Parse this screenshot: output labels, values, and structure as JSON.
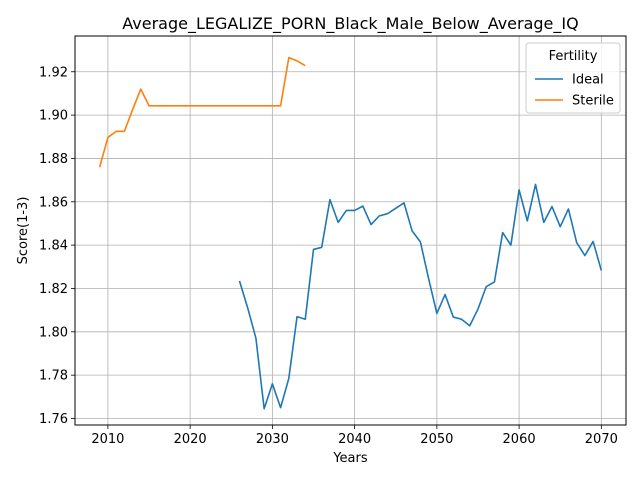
{
  "chart_data": {
    "type": "line",
    "title": "Average_LEGALIZE_PORN_Black_Male_Below_Average_IQ",
    "xlabel": "Years",
    "ylabel": "Score(1-3)",
    "xlim": [
      2006,
      2073
    ],
    "ylim": [
      1.757,
      1.9365
    ],
    "xticks": [
      2010,
      2020,
      2030,
      2040,
      2050,
      2060,
      2070
    ],
    "yticks": [
      1.76,
      1.78,
      1.8,
      1.82,
      1.84,
      1.86,
      1.88,
      1.9,
      1.92
    ],
    "grid": true,
    "legend": {
      "title": "Fertility",
      "position": "top-right"
    },
    "series": [
      {
        "name": "Ideal",
        "color": "#1f77b4",
        "x": [
          2026,
          2027,
          2028,
          2029,
          2030,
          2031,
          2032,
          2033,
          2034,
          2035,
          2036,
          2037,
          2038,
          2039,
          2040,
          2041,
          2042,
          2043,
          2044,
          2045,
          2046,
          2047,
          2048,
          2049,
          2050,
          2051,
          2052,
          2053,
          2054,
          2055,
          2056,
          2057,
          2058,
          2059,
          2060,
          2061,
          2062,
          2063,
          2064,
          2065,
          2066,
          2067,
          2068,
          2069,
          2070
        ],
        "y": [
          1.8235,
          1.811,
          1.797,
          1.7645,
          1.776,
          1.765,
          1.7785,
          1.807,
          1.8058,
          1.838,
          1.839,
          1.861,
          1.8505,
          1.856,
          1.856,
          1.858,
          1.8495,
          1.8535,
          1.8545,
          1.857,
          1.8595,
          1.8465,
          1.8415,
          1.8245,
          1.8085,
          1.8172,
          1.8068,
          1.8058,
          1.8028,
          1.8105,
          1.8208,
          1.823,
          1.8458,
          1.84,
          1.8655,
          1.8512,
          1.868,
          1.8505,
          1.8578,
          1.8485,
          1.8567,
          1.8412,
          1.8352,
          1.8417,
          1.8283
        ]
      },
      {
        "name": "Sterile",
        "color": "#ff7f0e",
        "x": [
          2009,
          2010,
          2011,
          2012,
          2013,
          2014,
          2015,
          2016,
          2017,
          2018,
          2019,
          2020,
          2021,
          2022,
          2023,
          2024,
          2025,
          2026,
          2027,
          2028,
          2029,
          2030,
          2031,
          2032,
          2033,
          2034
        ],
        "y": [
          1.876,
          1.8897,
          1.8925,
          1.8925,
          1.9025,
          1.912,
          1.9043,
          1.9043,
          1.9043,
          1.9043,
          1.9043,
          1.9043,
          1.9043,
          1.9043,
          1.9043,
          1.9043,
          1.9043,
          1.9043,
          1.9043,
          1.9043,
          1.9043,
          1.9043,
          1.9043,
          1.9265,
          1.925,
          1.9228
        ]
      }
    ]
  }
}
